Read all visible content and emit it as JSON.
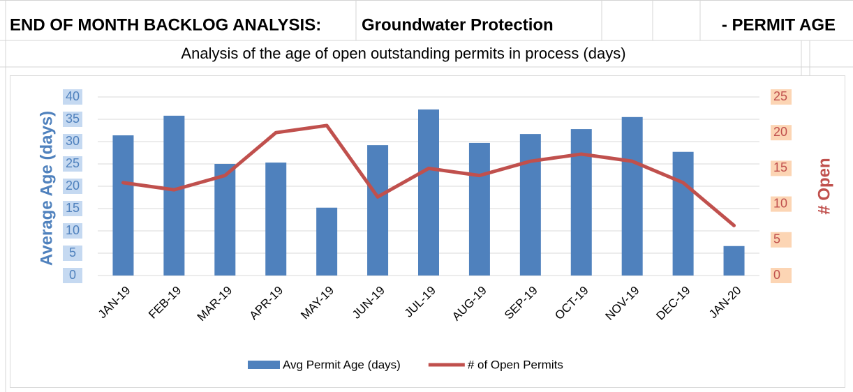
{
  "header": {
    "cells": [
      "END OF MONTH BACKLOG ANALYSIS:",
      "Groundwater Protection",
      "- PERMIT AGE"
    ],
    "subtitle": "Analysis of the age of open outstanding permits in process (days)"
  },
  "chart_data": {
    "type": "bar",
    "categories": [
      "JAN-19",
      "FEB-19",
      "MAR-19",
      "APR-19",
      "MAY-19",
      "JUN-19",
      "JUL-19",
      "AUG-19",
      "SEP-19",
      "OCT-19",
      "NOV-19",
      "DEC-19",
      "JAN-20"
    ],
    "series": [
      {
        "name": "Avg Permit Age (days)",
        "type": "bar",
        "color": "#4f81bd",
        "values": [
          31.4,
          35.8,
          25,
          25.3,
          15.2,
          29.2,
          37.2,
          29.7,
          31.7,
          32.8,
          35.5,
          27.7,
          6.6
        ]
      },
      {
        "name": "# of Open Permits",
        "type": "line",
        "color": "#c0504d",
        "axis": "y2",
        "values": [
          13,
          12,
          14,
          20,
          21,
          11,
          15,
          14,
          16,
          17,
          16,
          13,
          7
        ]
      }
    ],
    "ylabel": "Average Age (days)",
    "y2label": "# Open",
    "ylim": [
      0,
      40
    ],
    "yticks": [
      0,
      5,
      10,
      15,
      20,
      25,
      30,
      35,
      40
    ],
    "y2lim": [
      0,
      25
    ],
    "y2ticks": [
      0,
      5,
      10,
      15,
      20,
      25
    ],
    "grid": true,
    "legend": "bottom"
  }
}
